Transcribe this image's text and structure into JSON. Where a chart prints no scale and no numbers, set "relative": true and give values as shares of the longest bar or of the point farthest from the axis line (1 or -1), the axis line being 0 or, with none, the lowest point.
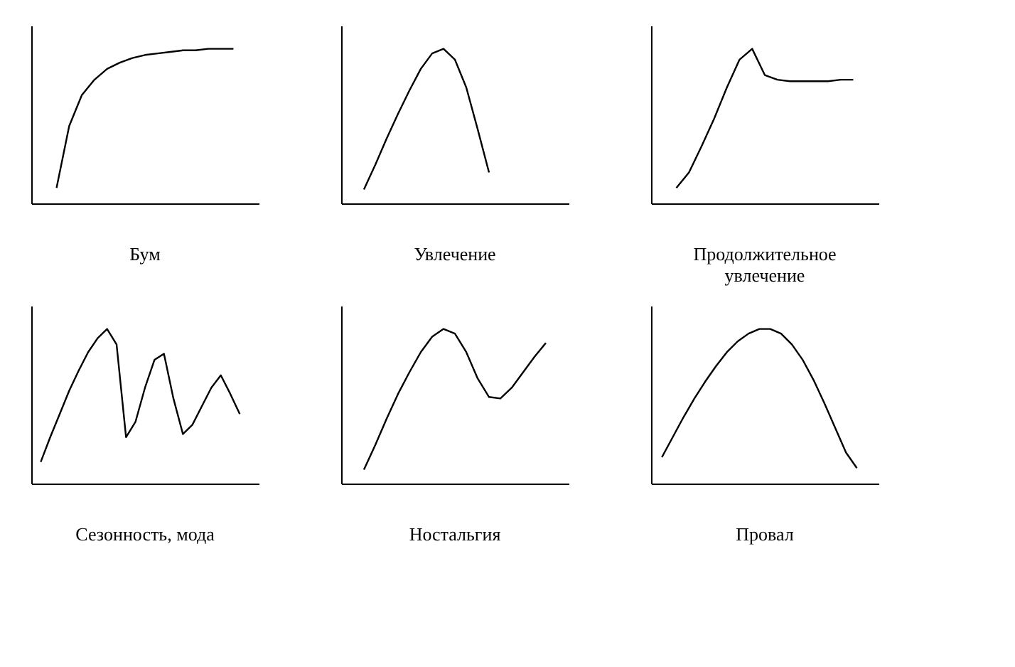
{
  "chart_data": [
    {
      "type": "line",
      "relative": true,
      "title": "Бум",
      "color": "#000000",
      "categories": [
        null,
        null,
        null,
        null,
        null,
        null,
        null,
        null,
        null,
        null,
        null,
        null,
        null,
        null,
        null,
        null,
        null
      ],
      "values": [
        null,
        0.1,
        0.5,
        0.7,
        0.8,
        0.87,
        0.91,
        0.94,
        0.96,
        0.97,
        0.98,
        0.99,
        0.99,
        1,
        1,
        1,
        null
      ]
    },
    {
      "type": "line",
      "relative": true,
      "title": "Увлечение",
      "color": "#000000",
      "categories": [
        null,
        null,
        null,
        null,
        null,
        null,
        null,
        null,
        null,
        null,
        null,
        null,
        null,
        null,
        null,
        null,
        null,
        null,
        null
      ],
      "values": [
        null,
        0.09,
        0.25,
        0.42,
        0.58,
        0.73,
        0.87,
        0.97,
        1.0,
        0.93,
        0.75,
        0.48,
        0.2,
        null,
        null,
        null,
        null,
        null,
        null
      ]
    },
    {
      "type": "line",
      "relative": true,
      "title": "Продолжительное\nувлечение",
      "color": "#000000",
      "categories": [
        null,
        null,
        null,
        null,
        null,
        null,
        null,
        null,
        null,
        null,
        null,
        null,
        null,
        null,
        null,
        null,
        null
      ],
      "values": [
        null,
        0.1,
        0.2,
        0.37,
        0.55,
        0.75,
        0.93,
        1.0,
        0.83,
        0.8,
        0.79,
        0.79,
        0.79,
        0.79,
        0.8,
        0.8,
        null
      ]
    },
    {
      "type": "line",
      "relative": true,
      "title": "Сезонность, мода",
      "color": "#000000",
      "categories": [
        null,
        null,
        null,
        null,
        null,
        null,
        null,
        null,
        null,
        null,
        null,
        null,
        null,
        null,
        null,
        null,
        null,
        null,
        null,
        null,
        null,
        null,
        null
      ],
      "values": [
        0.14,
        0.3,
        0.45,
        0.6,
        0.73,
        0.85,
        0.94,
        1.0,
        0.9,
        0.3,
        0.4,
        0.62,
        0.8,
        0.84,
        0.55,
        0.32,
        0.38,
        0.5,
        0.62,
        0.7,
        0.58,
        0.45,
        null
      ]
    },
    {
      "type": "line",
      "relative": true,
      "title": "Ностальгия",
      "color": "#000000",
      "categories": [
        null,
        null,
        null,
        null,
        null,
        null,
        null,
        null,
        null,
        null,
        null,
        null,
        null,
        null,
        null,
        null,
        null,
        null,
        null
      ],
      "values": [
        null,
        0.09,
        0.25,
        0.42,
        0.58,
        0.72,
        0.85,
        0.95,
        1.0,
        0.97,
        0.85,
        0.68,
        0.56,
        0.55,
        0.62,
        0.72,
        0.82,
        0.91,
        null
      ]
    },
    {
      "type": "line",
      "relative": true,
      "title": "Провал",
      "color": "#000000",
      "categories": [
        null,
        null,
        null,
        null,
        null,
        null,
        null,
        null,
        null,
        null,
        null,
        null,
        null,
        null,
        null,
        null,
        null,
        null,
        null,
        null
      ],
      "values": [
        0.17,
        0.3,
        0.43,
        0.55,
        0.66,
        0.76,
        0.85,
        0.92,
        0.97,
        1.0,
        1.0,
        0.97,
        0.9,
        0.8,
        0.67,
        0.52,
        0.36,
        0.2,
        0.1,
        null
      ]
    }
  ]
}
